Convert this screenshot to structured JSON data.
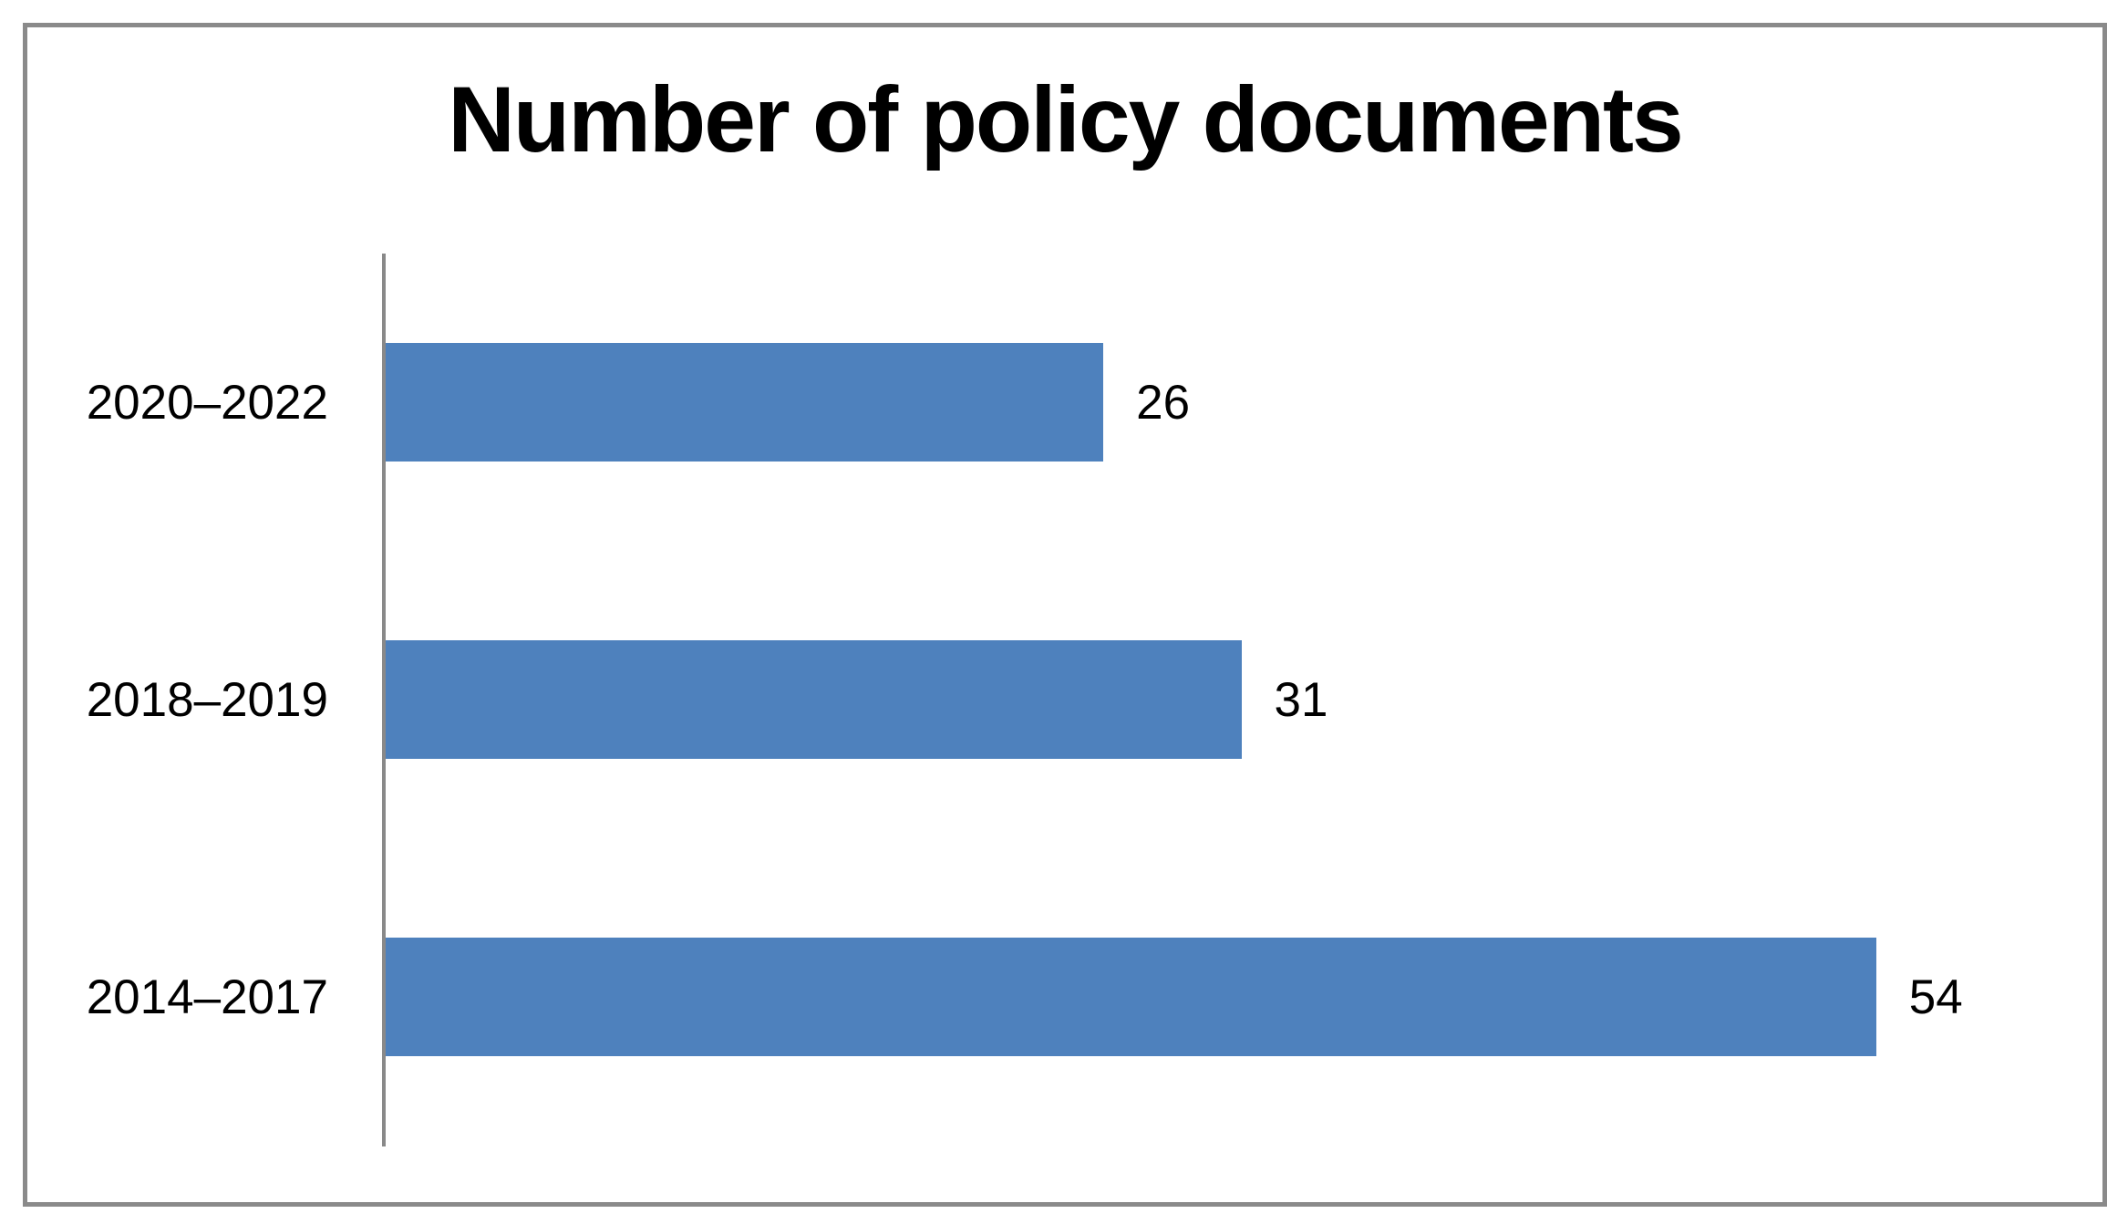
{
  "chart_data": {
    "type": "bar",
    "orientation": "horizontal",
    "title": "Number of policy documents",
    "categories": [
      "2020–2022",
      "2018–2019",
      "2014–2017"
    ],
    "values": [
      26,
      31,
      54
    ],
    "xlim": [
      0,
      62
    ],
    "grid": false,
    "legend": false,
    "bar_color": "#4E81BD",
    "axis_color": "#898989",
    "value_label_color": "#000000",
    "category_label_color": "#000000"
  },
  "frame": {
    "border_color": "#8A8A8A",
    "background": "#FFFFFF"
  }
}
